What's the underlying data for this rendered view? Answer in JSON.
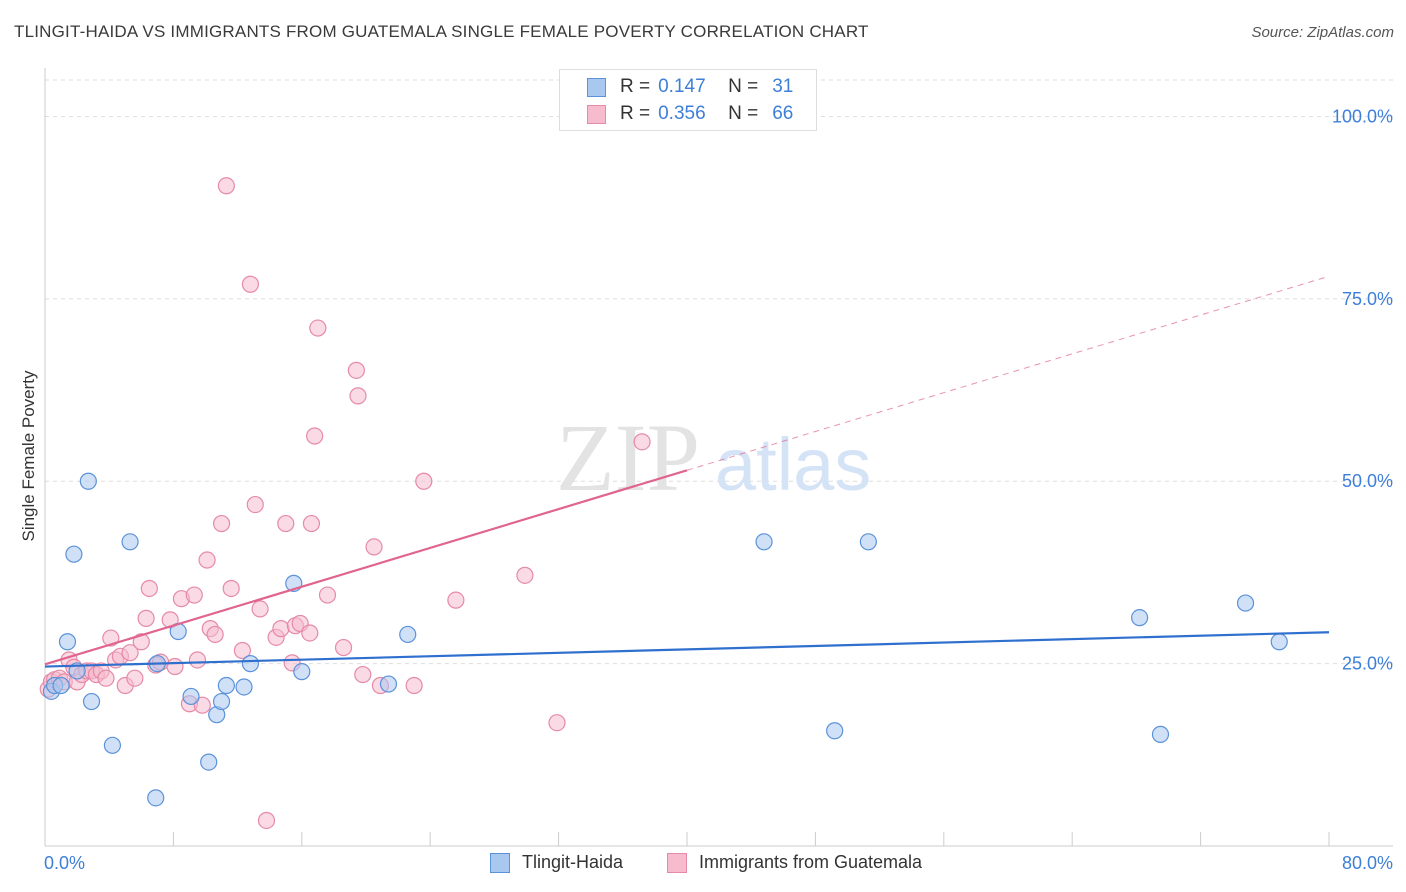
{
  "title": "TLINGIT-HAIDA VS IMMIGRANTS FROM GUATEMALA SINGLE FEMALE POVERTY CORRELATION CHART",
  "source": "Source: ZipAtlas.com",
  "watermark": {
    "zip": "ZIP",
    "atlas": "atlas"
  },
  "colors": {
    "blue_fill": "#a9c8f0",
    "blue_stroke": "#5b92d9",
    "blue_line": "#2f6fce",
    "pink_fill": "#f6bccd",
    "pink_stroke": "#e58aa8",
    "pink_line": "#e0648f",
    "axis_label": "#3d7fd8"
  },
  "legend": {
    "rows": [
      {
        "r_label": "R =",
        "r_value": "0.147",
        "n_label": "N =",
        "n_value": "31"
      },
      {
        "r_label": "R =",
        "r_value": "0.356",
        "n_label": "N =",
        "n_value": "66"
      }
    ]
  },
  "bottom_legend": [
    "Tlingit-Haida",
    "Immigrants from Guatemala"
  ],
  "chart_data": {
    "type": "scatter",
    "title": "TLINGIT-HAIDA VS IMMIGRANTS FROM GUATEMALA SINGLE FEMALE POVERTY CORRELATION CHART",
    "xlabel": "",
    "ylabel": "Single Female Poverty",
    "xlim": [
      0,
      80
    ],
    "ylim": [
      0,
      105
    ],
    "x_tick_labels": [
      "0.0%",
      "80.0%"
    ],
    "y_ticks": [
      25,
      50,
      75,
      100
    ],
    "y_tick_labels": [
      "25.0%",
      "50.0%",
      "75.0%",
      "100.0%"
    ],
    "grid": true,
    "series": [
      {
        "name": "Tlingit-Haida",
        "r": 0.147,
        "n": 31,
        "trend": {
          "x0": 0,
          "y0": 24.6,
          "x1": 80,
          "y1": 29.3,
          "extrapolate_to": 80
        },
        "points": [
          [
            0.4,
            21.2
          ],
          [
            0.6,
            22.0
          ],
          [
            1.0,
            22.0
          ],
          [
            1.4,
            28.0
          ],
          [
            1.8,
            40.0
          ],
          [
            2.0,
            24.0
          ],
          [
            2.7,
            50.0
          ],
          [
            2.9,
            19.8
          ],
          [
            4.2,
            13.8
          ],
          [
            5.3,
            41.7
          ],
          [
            6.9,
            6.6
          ],
          [
            7.0,
            25.0
          ],
          [
            8.3,
            29.4
          ],
          [
            9.1,
            20.5
          ],
          [
            10.2,
            11.5
          ],
          [
            10.7,
            18.0
          ],
          [
            11.0,
            19.8
          ],
          [
            11.3,
            22.0
          ],
          [
            12.4,
            21.8
          ],
          [
            12.8,
            25.0
          ],
          [
            15.5,
            36.0
          ],
          [
            16.0,
            23.9
          ],
          [
            21.4,
            22.2
          ],
          [
            22.6,
            29.0
          ],
          [
            44.8,
            41.7
          ],
          [
            49.2,
            15.8
          ],
          [
            51.3,
            41.7
          ],
          [
            68.2,
            31.3
          ],
          [
            69.5,
            15.3
          ],
          [
            74.8,
            33.3
          ],
          [
            76.9,
            28.0
          ]
        ]
      },
      {
        "name": "Immigrants from Guatemala",
        "r": 0.356,
        "n": 66,
        "trend": {
          "x0": 0,
          "y0": 24.9,
          "x1": 40,
          "y1": 51.5,
          "extrapolate_to": 80
        },
        "points": [
          [
            0.2,
            21.5
          ],
          [
            0.4,
            22.5
          ],
          [
            0.6,
            22.8
          ],
          [
            0.9,
            23.0
          ],
          [
            1.2,
            22.5
          ],
          [
            1.5,
            25.5
          ],
          [
            1.8,
            24.5
          ],
          [
            2.0,
            22.5
          ],
          [
            2.3,
            23.5
          ],
          [
            2.6,
            24.0
          ],
          [
            2.9,
            24.0
          ],
          [
            3.2,
            23.5
          ],
          [
            3.5,
            24.0
          ],
          [
            3.8,
            23.0
          ],
          [
            4.1,
            28.5
          ],
          [
            4.4,
            25.5
          ],
          [
            4.7,
            26.0
          ],
          [
            5.0,
            22.0
          ],
          [
            5.3,
            26.5
          ],
          [
            5.6,
            23.0
          ],
          [
            6.0,
            28.0
          ],
          [
            6.3,
            31.2
          ],
          [
            6.5,
            35.3
          ],
          [
            6.9,
            24.8
          ],
          [
            7.2,
            25.2
          ],
          [
            7.8,
            31.0
          ],
          [
            8.1,
            24.6
          ],
          [
            8.5,
            33.9
          ],
          [
            9.0,
            19.5
          ],
          [
            9.3,
            34.4
          ],
          [
            9.5,
            25.5
          ],
          [
            9.8,
            19.3
          ],
          [
            10.1,
            39.2
          ],
          [
            10.3,
            29.8
          ],
          [
            10.6,
            29.0
          ],
          [
            11.0,
            44.2
          ],
          [
            11.3,
            90.5
          ],
          [
            11.6,
            35.3
          ],
          [
            12.3,
            26.8
          ],
          [
            12.8,
            77.0
          ],
          [
            13.1,
            46.8
          ],
          [
            13.4,
            32.5
          ],
          [
            14.4,
            28.6
          ],
          [
            14.7,
            29.8
          ],
          [
            15.0,
            44.2
          ],
          [
            15.4,
            25.1
          ],
          [
            15.6,
            30.2
          ],
          [
            15.9,
            30.5
          ],
          [
            16.5,
            29.2
          ],
          [
            16.6,
            44.2
          ],
          [
            16.8,
            56.2
          ],
          [
            17.0,
            71.0
          ],
          [
            17.6,
            34.4
          ],
          [
            18.6,
            27.2
          ],
          [
            19.4,
            65.2
          ],
          [
            19.5,
            61.7
          ],
          [
            19.8,
            23.5
          ],
          [
            20.5,
            41.0
          ],
          [
            20.9,
            22.0
          ],
          [
            23.0,
            22.0
          ],
          [
            23.6,
            50.0
          ],
          [
            25.6,
            33.7
          ],
          [
            29.9,
            37.1
          ],
          [
            31.9,
            16.9
          ],
          [
            37.2,
            55.4
          ],
          [
            13.8,
            3.5
          ]
        ]
      }
    ]
  }
}
